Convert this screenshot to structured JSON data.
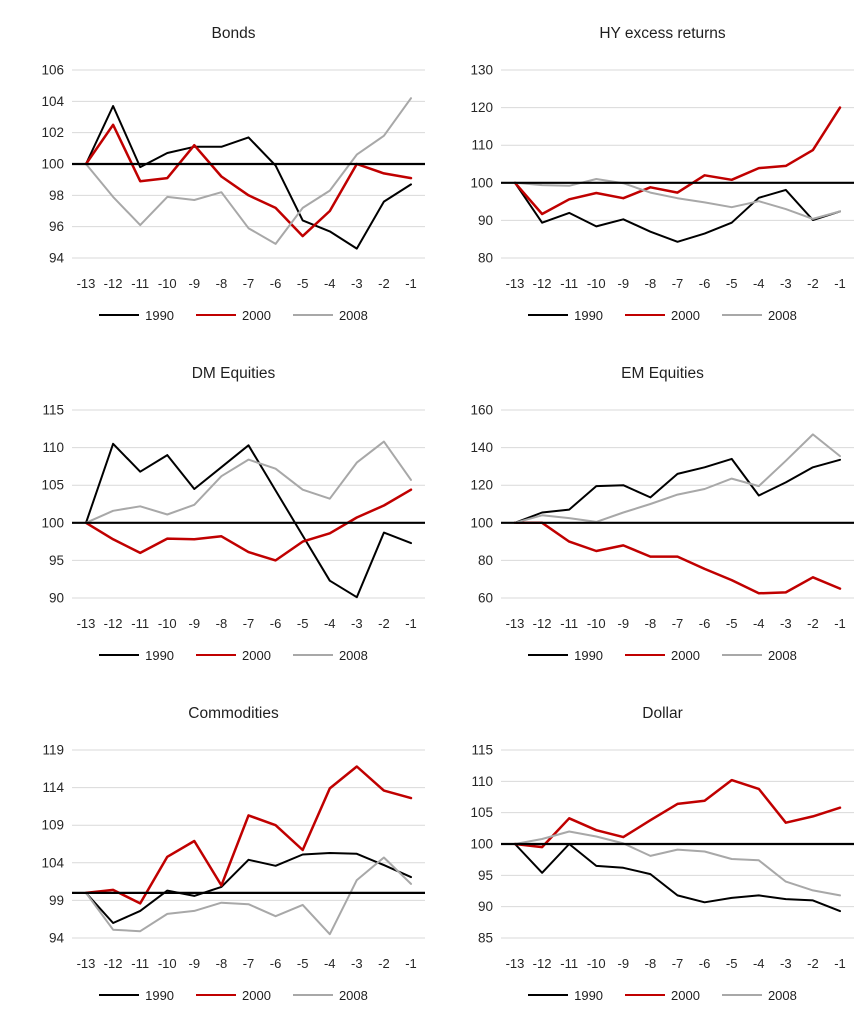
{
  "page": {
    "background": "#ffffff"
  },
  "colors": {
    "grid_line": "#d9d9d9",
    "reference_line": "#000000",
    "axis_text": "#262626",
    "series_1990": "#000000",
    "series_2000": "#c00000",
    "series_2008": "#a8a8a8"
  },
  "legend_labels": [
    "1990",
    "2000",
    "2008"
  ],
  "chart_data": [
    {
      "type": "line",
      "title": "Bonds",
      "x": [
        -13,
        -12,
        -11,
        -10,
        -9,
        -8,
        -7,
        -6,
        -5,
        -4,
        -3,
        -2,
        -1
      ],
      "ylim": [
        94,
        106
      ],
      "yticks": [
        94,
        96,
        98,
        100,
        102,
        104,
        106
      ],
      "reference_y": 100,
      "grid": true,
      "legend_position": "bottom",
      "series": [
        {
          "name": "1990",
          "color": "#000000",
          "width": 2,
          "values": [
            100,
            103.7,
            99.8,
            100.7,
            101.1,
            101.1,
            101.7,
            99.9,
            96.4,
            95.7,
            94.6,
            97.6,
            98.7
          ]
        },
        {
          "name": "2000",
          "color": "#c00000",
          "width": 2.5,
          "values": [
            100,
            102.5,
            98.9,
            99.1,
            101.2,
            99.2,
            98.0,
            97.2,
            95.4,
            97.0,
            100.0,
            99.4,
            99.1
          ]
        },
        {
          "name": "2008",
          "color": "#a8a8a8",
          "width": 2,
          "values": [
            100,
            97.9,
            96.1,
            97.9,
            97.7,
            98.2,
            95.9,
            94.9,
            97.2,
            98.3,
            100.6,
            101.8,
            104.2
          ]
        }
      ]
    },
    {
      "type": "line",
      "title": "HY excess returns",
      "x": [
        -13,
        -12,
        -11,
        -10,
        -9,
        -8,
        -7,
        -6,
        -5,
        -4,
        -3,
        -2,
        -1
      ],
      "ylim": [
        80,
        130
      ],
      "yticks": [
        80,
        90,
        100,
        110,
        120,
        130
      ],
      "reference_y": 100,
      "grid": true,
      "legend_position": "bottom",
      "series": [
        {
          "name": "1990",
          "color": "#000000",
          "width": 2,
          "values": [
            100,
            89.4,
            92.0,
            88.4,
            90.3,
            87.0,
            84.3,
            86.5,
            89.4,
            96.0,
            98.1,
            90.1,
            92.4
          ]
        },
        {
          "name": "2000",
          "color": "#c00000",
          "width": 2.5,
          "values": [
            100,
            91.7,
            95.6,
            97.3,
            95.9,
            98.8,
            97.4,
            102.0,
            100.8,
            103.9,
            104.5,
            108.7,
            120.0
          ]
        },
        {
          "name": "2008",
          "color": "#a8a8a8",
          "width": 2,
          "values": [
            100,
            99.4,
            99.2,
            101.0,
            99.9,
            97.4,
            95.9,
            94.8,
            93.5,
            95.1,
            93.0,
            90.4,
            92.4
          ]
        }
      ]
    },
    {
      "type": "line",
      "title": "DM Equities",
      "x": [
        -13,
        -12,
        -11,
        -10,
        -9,
        -8,
        -7,
        -6,
        -5,
        -4,
        -3,
        -2,
        -1
      ],
      "ylim": [
        90,
        115
      ],
      "yticks": [
        90,
        95,
        100,
        105,
        110,
        115
      ],
      "reference_y": 100,
      "grid": true,
      "legend_position": "bottom",
      "series": [
        {
          "name": "1990",
          "color": "#000000",
          "width": 2,
          "values": [
            100,
            110.5,
            106.8,
            109.0,
            104.5,
            107.4,
            110.3,
            104.3,
            98.3,
            92.3,
            90.1,
            98.7,
            97.3
          ]
        },
        {
          "name": "2000",
          "color": "#c00000",
          "width": 2.5,
          "values": [
            100,
            97.8,
            96.0,
            97.9,
            97.8,
            98.2,
            96.1,
            95.0,
            97.5,
            98.6,
            100.7,
            102.3,
            104.4
          ]
        },
        {
          "name": "2008",
          "color": "#a8a8a8",
          "width": 2,
          "values": [
            100,
            101.6,
            102.2,
            101.1,
            102.4,
            106.2,
            108.4,
            107.2,
            104.4,
            103.2,
            108.0,
            110.8,
            105.7
          ]
        }
      ]
    },
    {
      "type": "line",
      "title": "EM Equities",
      "x": [
        -13,
        -12,
        -11,
        -10,
        -9,
        -8,
        -7,
        -6,
        -5,
        -4,
        -3,
        -2,
        -1
      ],
      "ylim": [
        60,
        160
      ],
      "yticks": [
        60,
        80,
        100,
        120,
        140,
        160
      ],
      "reference_y": 100,
      "grid": true,
      "legend_position": "bottom",
      "series": [
        {
          "name": "1990",
          "color": "#000000",
          "width": 2,
          "values": [
            100,
            105.5,
            107.0,
            119.5,
            120.0,
            113.5,
            126.0,
            129.5,
            134.0,
            114.5,
            121.5,
            129.5,
            133.5
          ]
        },
        {
          "name": "2000",
          "color": "#c00000",
          "width": 2.5,
          "values": [
            100,
            100.0,
            90.0,
            85.0,
            88.0,
            82.0,
            82.0,
            75.5,
            69.5,
            62.5,
            63.0,
            71.0,
            65.0
          ]
        },
        {
          "name": "2008",
          "color": "#a8a8a8",
          "width": 2,
          "values": [
            100,
            104.0,
            102.5,
            100.5,
            105.5,
            110.0,
            115.0,
            118.0,
            123.5,
            119.5,
            133.0,
            147.0,
            135.5
          ]
        }
      ]
    },
    {
      "type": "line",
      "title": "Commodities",
      "x": [
        -13,
        -12,
        -11,
        -10,
        -9,
        -8,
        -7,
        -6,
        -5,
        -4,
        -3,
        -2,
        -1
      ],
      "ylim": [
        94,
        119
      ],
      "yticks": [
        94,
        99,
        104,
        109,
        114,
        119
      ],
      "reference_y": 100,
      "grid": true,
      "legend_position": "bottom",
      "series": [
        {
          "name": "1990",
          "color": "#000000",
          "width": 2,
          "values": [
            100,
            96.0,
            97.6,
            100.3,
            99.6,
            100.8,
            104.4,
            103.6,
            105.1,
            105.3,
            105.2,
            103.7,
            102.1
          ]
        },
        {
          "name": "2000",
          "color": "#c00000",
          "width": 2.5,
          "values": [
            100,
            100.4,
            98.6,
            104.8,
            106.9,
            101.0,
            110.3,
            109.0,
            105.7,
            113.9,
            116.8,
            113.6,
            112.6
          ]
        },
        {
          "name": "2008",
          "color": "#a8a8a8",
          "width": 2,
          "values": [
            100,
            95.1,
            94.9,
            97.2,
            97.6,
            98.7,
            98.5,
            96.9,
            98.4,
            94.5,
            101.7,
            104.7,
            101.2
          ]
        }
      ]
    },
    {
      "type": "line",
      "title": "Dollar",
      "x": [
        -13,
        -12,
        -11,
        -10,
        -9,
        -8,
        -7,
        -6,
        -5,
        -4,
        -3,
        -2,
        -1
      ],
      "ylim": [
        85,
        115
      ],
      "yticks": [
        85,
        90,
        95,
        100,
        105,
        110,
        115
      ],
      "reference_y": 100,
      "grid": true,
      "legend_position": "bottom",
      "series": [
        {
          "name": "1990",
          "color": "#000000",
          "width": 2,
          "values": [
            100,
            95.4,
            100.0,
            96.5,
            96.2,
            95.2,
            91.8,
            90.7,
            91.4,
            91.8,
            91.2,
            91.0,
            89.3
          ]
        },
        {
          "name": "2000",
          "color": "#c00000",
          "width": 2.5,
          "values": [
            100,
            99.5,
            104.1,
            102.2,
            101.1,
            103.8,
            106.4,
            106.9,
            110.2,
            108.8,
            103.4,
            104.4,
            105.8
          ]
        },
        {
          "name": "2008",
          "color": "#a8a8a8",
          "width": 2,
          "values": [
            100,
            100.8,
            102.0,
            101.2,
            100.1,
            98.1,
            99.1,
            98.8,
            97.6,
            97.4,
            94.0,
            92.6,
            91.8
          ]
        }
      ]
    }
  ]
}
